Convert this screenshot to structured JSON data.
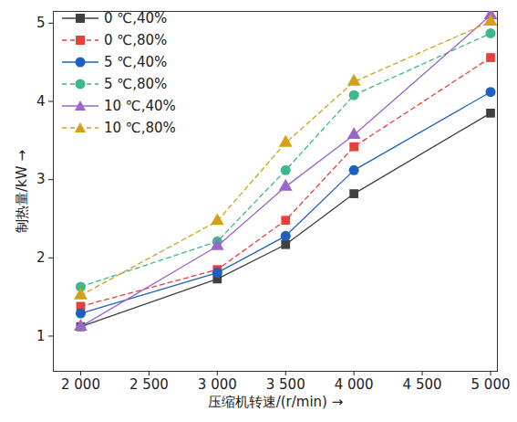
{
  "chart_data": {
    "type": "line",
    "x_label": "压缩机转速/(r/min)",
    "y_label": "制热量/kW",
    "x": [
      2000,
      3000,
      3500,
      4000,
      5000
    ],
    "xlim": [
      1800,
      5050
    ],
    "xticks": [
      {
        "value": 2000,
        "label": "2 000"
      },
      {
        "value": 2500,
        "label": "2 500"
      },
      {
        "value": 3000,
        "label": "3 000"
      },
      {
        "value": 3500,
        "label": "3 500"
      },
      {
        "value": 4000,
        "label": "4 000"
      },
      {
        "value": 4500,
        "label": "4 500"
      },
      {
        "value": 5000,
        "label": "5 000"
      }
    ],
    "ylim": [
      0.55,
      5.15
    ],
    "yticks": [
      1,
      2,
      3,
      4,
      5
    ],
    "grid": false,
    "legend": "top-left",
    "series": [
      {
        "name": "0 ℃,40%",
        "color": "#404040",
        "marker": "square",
        "line_style": "solid",
        "values": [
          1.12,
          1.73,
          2.17,
          2.82,
          3.85
        ]
      },
      {
        "name": "0 ℃,80%",
        "color": "#e8403a",
        "marker": "square",
        "line_style": "dashed",
        "values": [
          1.38,
          1.85,
          2.48,
          3.42,
          4.56
        ]
      },
      {
        "name": "5 ℃,40%",
        "color": "#1f5fbf",
        "marker": "circle",
        "line_style": "solid",
        "values": [
          1.29,
          1.81,
          2.28,
          3.12,
          4.12
        ]
      },
      {
        "name": "5 ℃,80%",
        "color": "#3cb88a",
        "marker": "circle",
        "line_style": "dashed",
        "values": [
          1.63,
          2.21,
          3.12,
          4.08,
          4.87
        ]
      },
      {
        "name": "10 ℃,40%",
        "color": "#9966cc",
        "marker": "triangle",
        "line_style": "solid",
        "values": [
          1.12,
          2.15,
          2.91,
          3.57,
          5.1
        ]
      },
      {
        "name": "10 ℃,80%",
        "color": "#d4a017",
        "marker": "triangle",
        "line_style": "dashed",
        "values": [
          1.52,
          2.47,
          3.47,
          4.25,
          5.02
        ]
      }
    ]
  }
}
